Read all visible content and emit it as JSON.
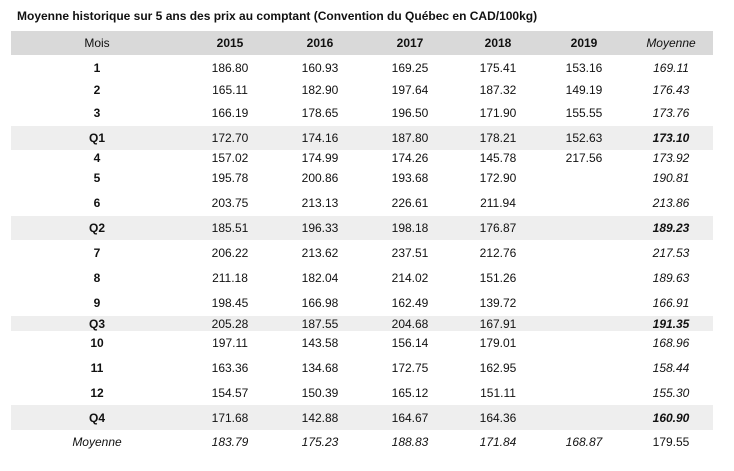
{
  "title": "Moyenne historique sur 5 ans des prix au comptant (Convention du Québec en CAD/100kg)",
  "table": {
    "header": [
      "Mois",
      "2015",
      "2016",
      "2017",
      "2018",
      "2019",
      "Moyenne"
    ],
    "rows": [
      [
        "1",
        "186.80",
        "160.93",
        "169.25",
        "175.41",
        "153.16",
        "169.11"
      ],
      [
        "2",
        "165.11",
        "182.90",
        "197.64",
        "187.32",
        "149.19",
        "176.43"
      ],
      [
        "3",
        "166.19",
        "178.65",
        "196.50",
        "171.90",
        "155.55",
        "173.76"
      ],
      [
        "Q1",
        "172.70",
        "174.16",
        "187.80",
        "178.21",
        "152.63",
        "173.10"
      ],
      [
        "4",
        "157.02",
        "174.99",
        "174.26",
        "145.78",
        "217.56",
        "173.92"
      ],
      [
        "5",
        "195.78",
        "200.86",
        "193.68",
        "172.90",
        null,
        "190.81"
      ],
      [
        "6",
        "203.75",
        "213.13",
        "226.61",
        "211.94",
        null,
        "213.86"
      ],
      [
        "Q2",
        "185.51",
        "196.33",
        "198.18",
        "176.87",
        null,
        "189.23"
      ],
      [
        "7",
        "206.22",
        "213.62",
        "237.51",
        "212.76",
        null,
        "217.53"
      ],
      [
        "8",
        "211.18",
        "182.04",
        "214.02",
        "151.26",
        null,
        "189.63"
      ],
      [
        "9",
        "198.45",
        "166.98",
        "162.49",
        "139.72",
        null,
        "166.91"
      ],
      [
        "Q3",
        "205.28",
        "187.55",
        "204.68",
        "167.91",
        null,
        "191.35"
      ],
      [
        "10",
        "197.11",
        "143.58",
        "156.14",
        "179.01",
        null,
        "168.96"
      ],
      [
        "11",
        "163.36",
        "134.68",
        "172.75",
        "162.95",
        null,
        "158.44"
      ],
      [
        "12",
        "154.57",
        "150.39",
        "165.12",
        "151.11",
        null,
        "155.30"
      ],
      [
        "Q4",
        "171.68",
        "142.88",
        "164.67",
        "164.36",
        null,
        "160.90"
      ],
      [
        "Moyenne",
        "183.79",
        "175.23",
        "188.83",
        "171.84",
        "168.87",
        "179.55"
      ]
    ]
  }
}
